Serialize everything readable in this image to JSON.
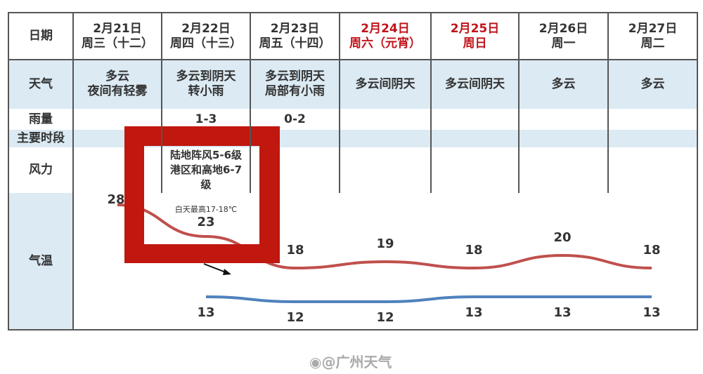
{
  "row_labels": {
    "date": "日期",
    "weather": "天气",
    "rain": "雨量",
    "period": "主要时段",
    "wind": "风力",
    "temp": "气温"
  },
  "days": [
    {
      "date": "2月21日",
      "week": "周三（十二）",
      "weather": "多云\n夜间有轻雾",
      "rain": "",
      "wind": "",
      "red": false
    },
    {
      "date": "2月22日",
      "week": "周四（十三）",
      "weather": "多云到阴天\n转小雨",
      "rain": "1-3",
      "wind": "陆地阵风5-6级\n港区和高地6-7\n级",
      "red": false
    },
    {
      "date": "2月23日",
      "week": "周五（十四）",
      "weather": "多云到阴天\n局部有小雨",
      "rain": "0-2",
      "wind": "",
      "red": false
    },
    {
      "date": "2月24日",
      "week": "周六（元宵）",
      "weather": "多云间阴天",
      "rain": "",
      "wind": "",
      "red": true
    },
    {
      "date": "2月25日",
      "week": "周日",
      "weather": "多云间阴天",
      "rain": "",
      "wind": "",
      "red": true
    },
    {
      "date": "2月26日",
      "week": "周一",
      "weather": "多云",
      "rain": "",
      "wind": "",
      "red": false
    },
    {
      "date": "2月27日",
      "week": "周二",
      "weather": "多云",
      "rain": "",
      "wind": "",
      "red": false
    }
  ],
  "annotation": "白天最高17-18℃",
  "watermark": "@广州天气",
  "colors": {
    "high": "#c0504d",
    "low": "#4f81bd",
    "red_text": "#c0141b",
    "highlight_box": "#c0170f",
    "row_blue": "#dbeaf3"
  },
  "chart_data": {
    "type": "line",
    "categories": [
      "2月21日",
      "2月22日",
      "2月23日",
      "2月24日",
      "2月25日",
      "2月26日",
      "2月27日"
    ],
    "series": [
      {
        "values": [
          28,
          23,
          18,
          19,
          18,
          20,
          18
        ],
        "color": "#c0504d"
      },
      {
        "values": [
          null,
          13,
          12,
          12,
          13,
          13,
          13
        ],
        "color": "#4f81bd"
      }
    ]
  }
}
